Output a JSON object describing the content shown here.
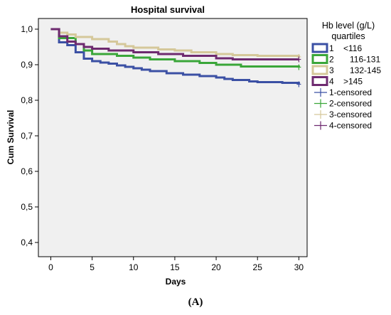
{
  "caption": "(A)",
  "chart_data": {
    "type": "line",
    "step": true,
    "title": "Hospital survival",
    "xlabel": "Days",
    "ylabel": "Cum Survival",
    "xlim": [
      -1.5,
      31
    ],
    "ylim": [
      0.36,
      1.03
    ],
    "xticks": [
      0,
      5,
      10,
      15,
      20,
      25,
      30
    ],
    "yticks": [
      0.4,
      0.5,
      0.6,
      0.7,
      0.8,
      0.9,
      1.0
    ],
    "ytick_labels": [
      "0,4",
      "0,5",
      "0,6",
      "0,7",
      "0,8",
      "0,9",
      "1,0"
    ],
    "grid": false,
    "background": "#f0f0f0",
    "legend": {
      "title": "Hb level (g/L) quartiles",
      "title_lines": [
        "Hb level (g/L)",
        "quartiles"
      ],
      "position": "right",
      "entries": [
        {
          "num": "1",
          "range": "<116",
          "color": "#3b50a4",
          "kind": "line"
        },
        {
          "num": "2",
          "range": "116-131",
          "color": "#3aa639",
          "kind": "line"
        },
        {
          "num": "3",
          "range": "132-145",
          "color": "#d5c89a",
          "kind": "line"
        },
        {
          "num": "4",
          "range": ">145",
          "color": "#6e2a6f",
          "kind": "line"
        },
        {
          "label": "1-censored",
          "color": "#3b50a4",
          "kind": "censor"
        },
        {
          "label": "2-censored",
          "color": "#3aa639",
          "kind": "censor"
        },
        {
          "label": "3-censored",
          "color": "#d5c89a",
          "kind": "censor"
        },
        {
          "label": "4-censored",
          "color": "#6e2a6f",
          "kind": "censor"
        }
      ]
    },
    "series": [
      {
        "name": "1",
        "color": "#3b50a4",
        "x": [
          0,
          1,
          2,
          3,
          4,
          5,
          6,
          7,
          8,
          9,
          10,
          11,
          12,
          14,
          16,
          18,
          20,
          21,
          22,
          24,
          25,
          28,
          30
        ],
        "y": [
          1.0,
          0.963,
          0.955,
          0.935,
          0.917,
          0.91,
          0.906,
          0.903,
          0.898,
          0.894,
          0.89,
          0.886,
          0.882,
          0.876,
          0.872,
          0.868,
          0.864,
          0.86,
          0.857,
          0.853,
          0.851,
          0.849,
          0.845
        ]
      },
      {
        "name": "2",
        "color": "#3aa639",
        "x": [
          0,
          1,
          3,
          4,
          5,
          8,
          10,
          12,
          15,
          18,
          20,
          23,
          30
        ],
        "y": [
          1.0,
          0.975,
          0.958,
          0.94,
          0.93,
          0.925,
          0.92,
          0.915,
          0.91,
          0.905,
          0.9,
          0.895,
          0.893
        ]
      },
      {
        "name": "3",
        "color": "#d5c89a",
        "x": [
          0,
          1,
          2,
          3,
          5,
          7,
          8,
          9,
          10,
          13,
          15,
          17,
          20,
          22,
          25,
          30
        ],
        "y": [
          1.0,
          0.99,
          0.985,
          0.978,
          0.972,
          0.965,
          0.958,
          0.952,
          0.948,
          0.943,
          0.94,
          0.935,
          0.93,
          0.927,
          0.925,
          0.922
        ]
      },
      {
        "name": "4",
        "color": "#6e2a6f",
        "x": [
          0,
          1,
          2,
          3,
          4,
          5,
          7,
          10,
          13,
          16,
          20,
          22,
          30
        ],
        "y": [
          1.0,
          0.98,
          0.965,
          0.958,
          0.95,
          0.945,
          0.94,
          0.935,
          0.93,
          0.925,
          0.918,
          0.915,
          0.915
        ]
      }
    ],
    "censored": [
      {
        "series": "1",
        "x": 30,
        "y": 0.845
      },
      {
        "series": "2",
        "x": 30,
        "y": 0.893
      },
      {
        "series": "3",
        "x": 30,
        "y": 0.922
      },
      {
        "series": "4",
        "x": 30,
        "y": 0.915
      }
    ]
  }
}
